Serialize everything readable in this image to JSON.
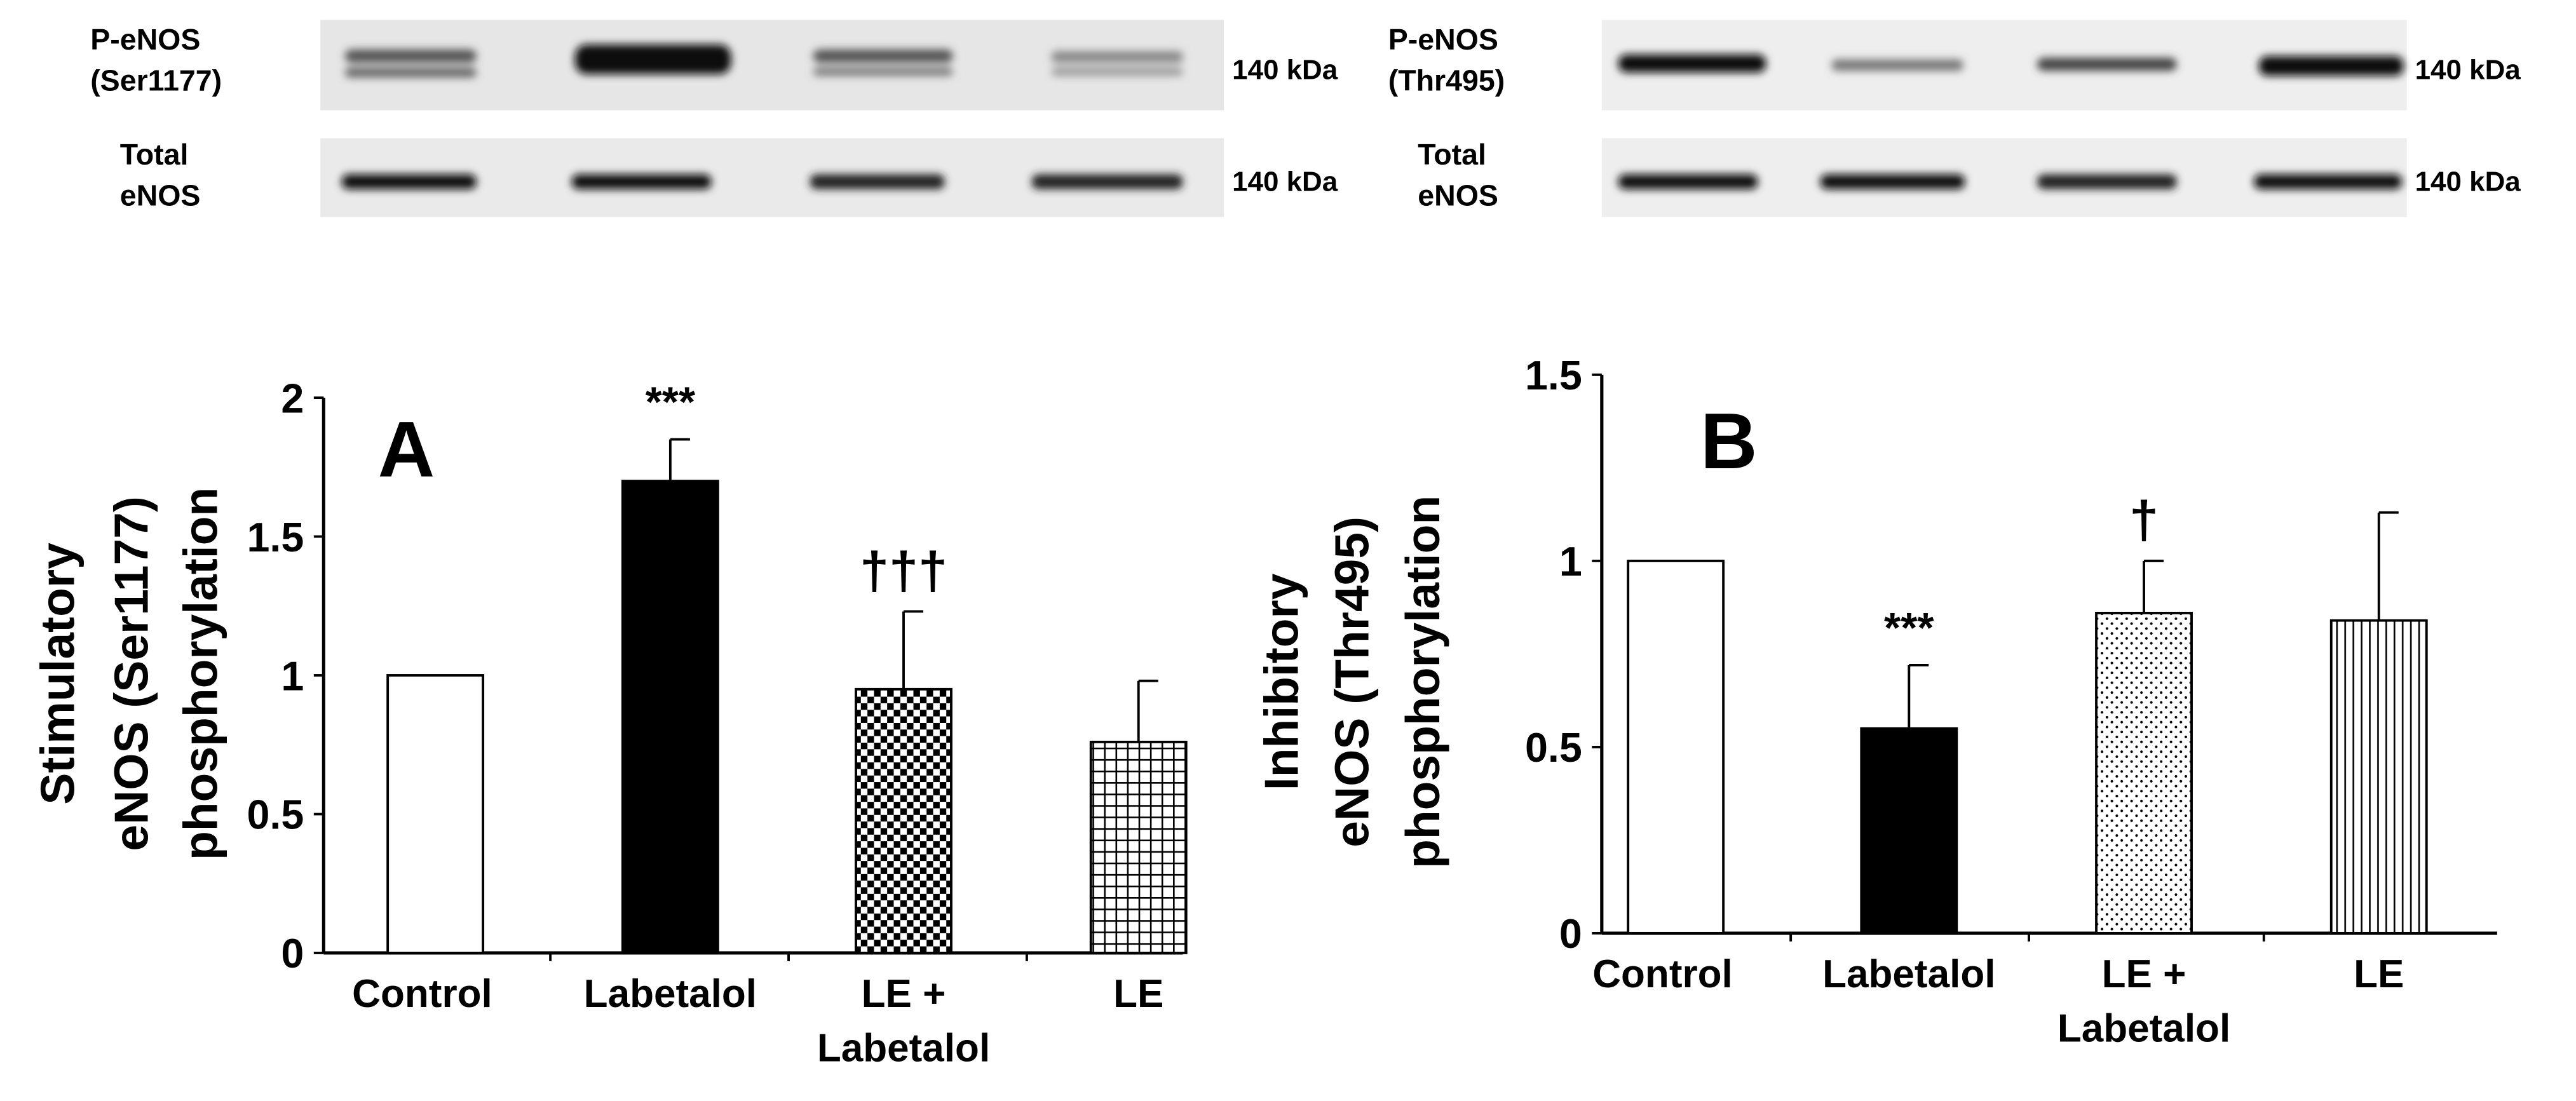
{
  "blots": [
    {
      "phospho_label": [
        "P-eNOS",
        "(Ser1177)"
      ],
      "phospho_size": "140 kDa",
      "total_label": [
        "Total",
        "eNOS"
      ],
      "total_size": "140 kDa"
    },
    {
      "phospho_label": [
        "P-eNOS",
        "(Thr495)"
      ],
      "phospho_size": "140 kDa",
      "total_label": [
        "Total",
        "eNOS"
      ],
      "total_size": "140 kDa"
    }
  ],
  "chart_data": [
    {
      "type": "bar",
      "title": "A",
      "ylabel": [
        "Stimulatory",
        "eNOS (Ser1177)",
        "phosphorylation"
      ],
      "categories": [
        "Control",
        "Labetalol",
        "LE +\nLabetalol",
        "LE"
      ],
      "values": [
        1,
        1.7,
        0.95,
        0.76
      ],
      "errors": [
        0,
        0.15,
        0.28,
        0.22
      ],
      "annotations": [
        null,
        "***",
        "†††",
        null
      ],
      "fills": [
        "white",
        "black",
        "checker",
        "grid"
      ],
      "ylim": [
        0,
        2
      ],
      "yticks": [
        0,
        0.5,
        1,
        1.5,
        2
      ]
    },
    {
      "type": "bar",
      "title": "B",
      "ylabel": [
        "Inhibitory",
        "eNOS (Thr495)",
        "phosphorylation"
      ],
      "categories": [
        "Control",
        "Labetalol",
        "LE +\nLabetalol",
        "LE"
      ],
      "values": [
        1,
        0.55,
        0.86,
        0.84
      ],
      "errors": [
        0,
        0.17,
        0.14,
        0.29
      ],
      "annotations": [
        null,
        "***",
        "†",
        null
      ],
      "fills": [
        "white",
        "black",
        "dots",
        "vlines"
      ],
      "ylim": [
        0,
        1.5
      ],
      "yticks": [
        0,
        0.5,
        1,
        1.5
      ]
    }
  ]
}
